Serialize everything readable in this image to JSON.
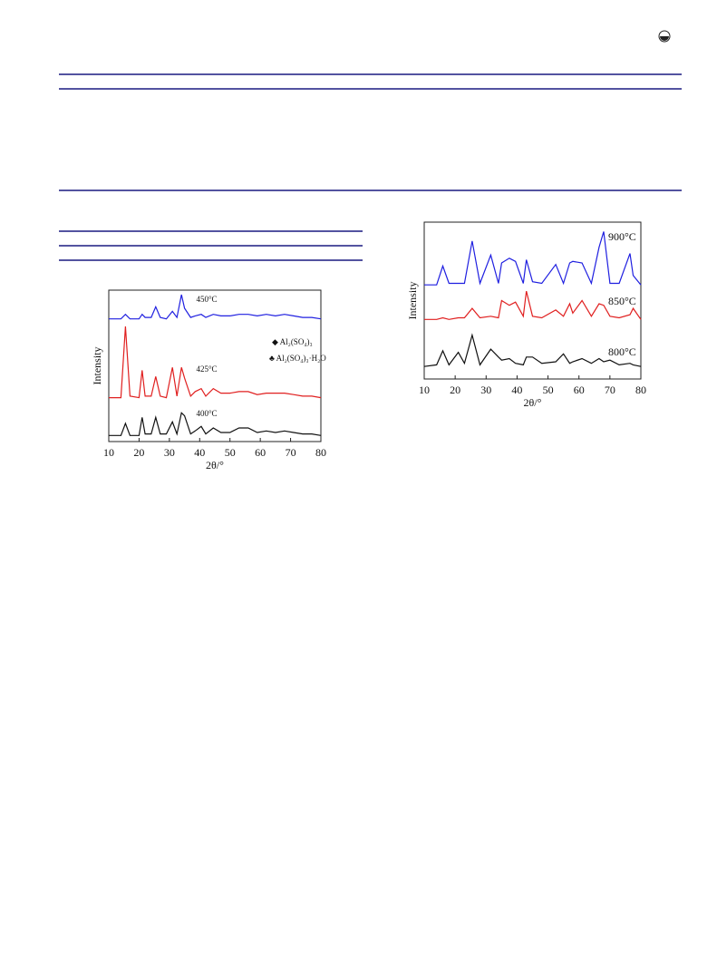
{
  "chart_data": [
    {
      "type": "line",
      "xlabel": "2θ/°",
      "ylabel": "Intensity",
      "xlim": [
        10,
        80
      ],
      "xticks": [
        10,
        20,
        30,
        40,
        50,
        60,
        70,
        80
      ],
      "ylim": [
        0,
        100
      ],
      "annotations": [
        "◆ Al₂(SO₄)₃",
        "♣ Al₂(SO₄)₃·H₂O"
      ],
      "x": [
        10,
        14,
        15.5,
        17,
        20,
        21,
        22,
        24,
        25.5,
        27,
        29,
        31,
        32.5,
        34,
        35,
        37,
        38.5,
        40.5,
        42,
        44.5,
        47,
        50,
        53,
        56,
        59,
        62,
        65,
        68,
        71,
        74,
        77,
        80
      ],
      "series": [
        {
          "name": "450°C",
          "color": "#1f1fe0",
          "values": [
            81,
            81,
            84,
            81,
            81,
            84,
            82,
            82,
            89,
            82,
            81,
            86,
            82,
            97,
            88,
            82,
            83,
            84,
            82,
            84,
            83,
            83,
            84,
            84,
            83,
            84,
            83,
            84,
            83,
            82,
            82,
            81
          ]
        },
        {
          "name": "425°C",
          "color": "#e01f1f",
          "values": [
            29,
            29,
            76,
            30,
            29,
            47,
            30,
            30,
            43,
            30,
            29,
            49,
            30,
            49,
            42,
            30,
            33,
            35,
            30,
            35,
            32,
            32,
            33,
            33,
            31,
            32,
            32,
            32,
            31,
            30,
            30,
            29
          ]
        },
        {
          "name": "400°C",
          "color": "#111111",
          "values": [
            4,
            4,
            12,
            4,
            4,
            16,
            5,
            5,
            16,
            5,
            5,
            13,
            5,
            19,
            17,
            5,
            7,
            10,
            5,
            9,
            6,
            6,
            9,
            9,
            6,
            7,
            6,
            7,
            6,
            5,
            5,
            4
          ]
        }
      ]
    },
    {
      "type": "line",
      "xlabel": "2θ/°",
      "ylabel": "Intensity",
      "xlim": [
        10,
        80
      ],
      "xticks": [
        10,
        20,
        30,
        40,
        50,
        60,
        70,
        80
      ],
      "ylim": [
        0,
        100
      ],
      "x": [
        10,
        14,
        16,
        18,
        21,
        23,
        25.5,
        28,
        31.5,
        34,
        35,
        37.5,
        39.5,
        42,
        43,
        45,
        48,
        52.5,
        55,
        57,
        58,
        61,
        64,
        66.5,
        68,
        70,
        73,
        76.5,
        77.5,
        80
      ],
      "series": [
        {
          "name": "900°C",
          "color": "#1f1fe0",
          "values": [
            60,
            60,
            72,
            61,
            61,
            61,
            88,
            61,
            79,
            61,
            74,
            77,
            75,
            61,
            76,
            62,
            61,
            73,
            61,
            74,
            75,
            74,
            61,
            84,
            94,
            61,
            61,
            80,
            66,
            60
          ]
        },
        {
          "name": "850°C",
          "color": "#e01f1f",
          "values": [
            38,
            38,
            39,
            38,
            39,
            39,
            45,
            39,
            40,
            39,
            50,
            47,
            49,
            40,
            56,
            40,
            39,
            44,
            40,
            48,
            42,
            50,
            40,
            48,
            47,
            40,
            39,
            41,
            45,
            38
          ]
        },
        {
          "name": "800°C",
          "color": "#111111",
          "values": [
            8,
            9,
            18,
            9,
            17,
            10,
            28,
            9,
            19,
            14,
            12,
            13,
            10,
            9,
            14,
            14,
            10,
            11,
            16,
            10,
            11,
            13,
            10,
            13,
            11,
            12,
            9,
            10,
            9,
            8
          ]
        }
      ]
    }
  ]
}
